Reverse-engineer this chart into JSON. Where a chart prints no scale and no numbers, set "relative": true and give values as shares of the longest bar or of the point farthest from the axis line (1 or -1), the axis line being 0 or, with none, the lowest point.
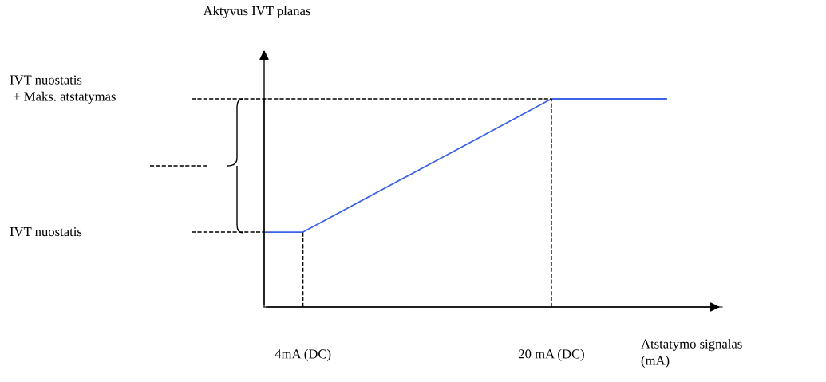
{
  "chart_data": {
    "type": "line",
    "xlabel": "Atstatymo signalas\n(mA)",
    "relative": true,
    "x": [
      1.5,
      4,
      20,
      27.4
    ],
    "series": [
      {
        "color": "#3b63e8",
        "values": [
          0.36,
          0.36,
          1,
          1
        ]
      }
    ],
    "xlim": [
      1.5,
      31
    ],
    "xticks": [
      {
        "value": 4,
        "label": "4mA (DC)"
      },
      {
        "value": 20,
        "label": "20 mA (DC)"
      }
    ],
    "annotations": [
      "Aktyvus IVT planas",
      "IVT nuostatis",
      "IVT nuostatis\n + Maks. atstatymas"
    ],
    "ref_lines": [
      {
        "axis": "x",
        "value": 4,
        "line_style": "dashed",
        "color": "#000000"
      },
      {
        "axis": "x",
        "value": 20,
        "line_style": "dashed",
        "color": "#000000"
      }
    ],
    "grid": false,
    "marker": "none",
    "line_style": "solid"
  }
}
